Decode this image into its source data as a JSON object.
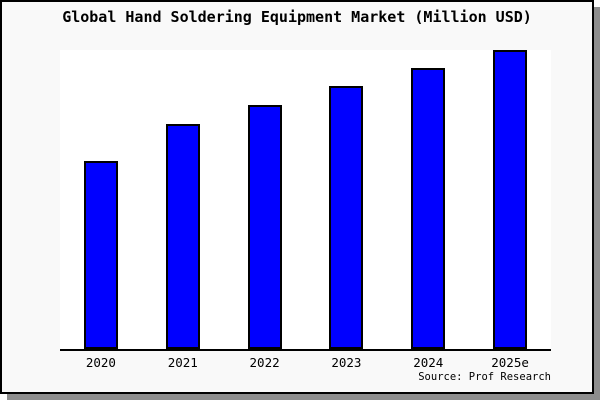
{
  "figure": {
    "title": "Global Hand Soldering Equipment Market (Million USD)",
    "source": "Source: Prof Research"
  },
  "colors": {
    "bar_fill": "#0000ff",
    "bar_border": "#000000",
    "figure_bg": "#f9f9f9",
    "plot_bg": "#ffffff",
    "axis": "#000000",
    "frame_border": "#000000",
    "frame_shadow": "#8d8d8d",
    "text": "#000000"
  },
  "chart_data": {
    "type": "bar",
    "title": "Global Hand Soldering Equipment Market (Million USD)",
    "categories": [
      "2020",
      "2021",
      "2022",
      "2023",
      "2024",
      "2025e"
    ],
    "values": [
      62.8,
      75.3,
      81.6,
      88.1,
      94.0,
      100.0
    ],
    "xlabel": "",
    "ylabel": "",
    "ylim": [
      0,
      100
    ],
    "grid": false,
    "legend": false,
    "value_axis_visible": false,
    "note": "No numeric value axis is shown in the figure; values are relative bar heights normalized so that 2025e = 100.",
    "annotations": [
      "Source: Prof Research"
    ]
  }
}
